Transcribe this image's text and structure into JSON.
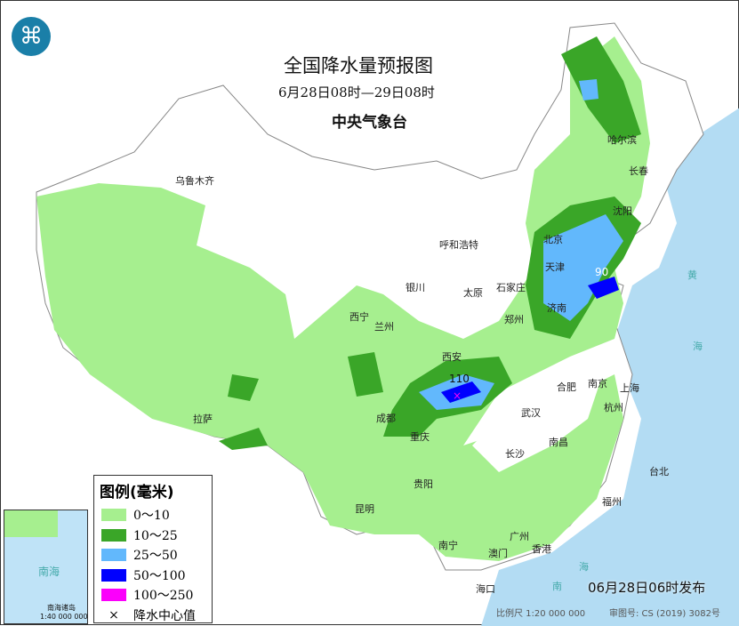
{
  "header": {
    "title": "全国降水量预报图",
    "period": "6月28日08时—29日08时",
    "issuer": "中央气象台"
  },
  "legend": {
    "title": "图例(毫米)",
    "items": [
      {
        "label": "0～10",
        "color": "#a6ef8f"
      },
      {
        "label": "10～25",
        "color": "#3aa628"
      },
      {
        "label": "25～50",
        "color": "#62b8fc"
      },
      {
        "label": "50～100",
        "color": "#0000fe"
      },
      {
        "label": "100～250",
        "color": "#fb00fb"
      }
    ],
    "center_label": "降水中心值",
    "center_icon": "x-mark-icon"
  },
  "cities": [
    {
      "name": "乌鲁木齐"
    },
    {
      "name": "呼和浩特"
    },
    {
      "name": "银川"
    },
    {
      "name": "西宁"
    },
    {
      "name": "兰州"
    },
    {
      "name": "太原"
    },
    {
      "name": "石家庄"
    },
    {
      "name": "北京"
    },
    {
      "name": "天津"
    },
    {
      "name": "沈阳"
    },
    {
      "name": "长春"
    },
    {
      "name": "哈尔滨"
    },
    {
      "name": "济南"
    },
    {
      "name": "郑州"
    },
    {
      "name": "西安"
    },
    {
      "name": "成都"
    },
    {
      "name": "重庆"
    },
    {
      "name": "武汉"
    },
    {
      "name": "合肥"
    },
    {
      "name": "南京"
    },
    {
      "name": "上海"
    },
    {
      "name": "杭州"
    },
    {
      "name": "长沙"
    },
    {
      "name": "南昌"
    },
    {
      "name": "拉萨"
    },
    {
      "name": "贵阳"
    },
    {
      "name": "昆明"
    },
    {
      "name": "南宁"
    },
    {
      "name": "广州"
    },
    {
      "name": "香港"
    },
    {
      "name": "澳门"
    },
    {
      "name": "福州"
    },
    {
      "name": "台北"
    },
    {
      "name": "海口"
    }
  ],
  "centers": [
    {
      "value": "110"
    },
    {
      "value": "90"
    }
  ],
  "sea_labels": {
    "huang": "黄",
    "hai": "海",
    "nan": "南",
    "hai2": "海"
  },
  "inset": {
    "label": "南海",
    "scale_name": "南海诸岛",
    "scale": "1:40 000 000"
  },
  "footer": {
    "issued": "06月28日06时发布",
    "scale": "比例尺 1:20 000 000",
    "map_no": "审图号: CS (2019) 3082号"
  },
  "colors": {
    "sea": "#b3dcf3",
    "land": "#ffffff"
  }
}
